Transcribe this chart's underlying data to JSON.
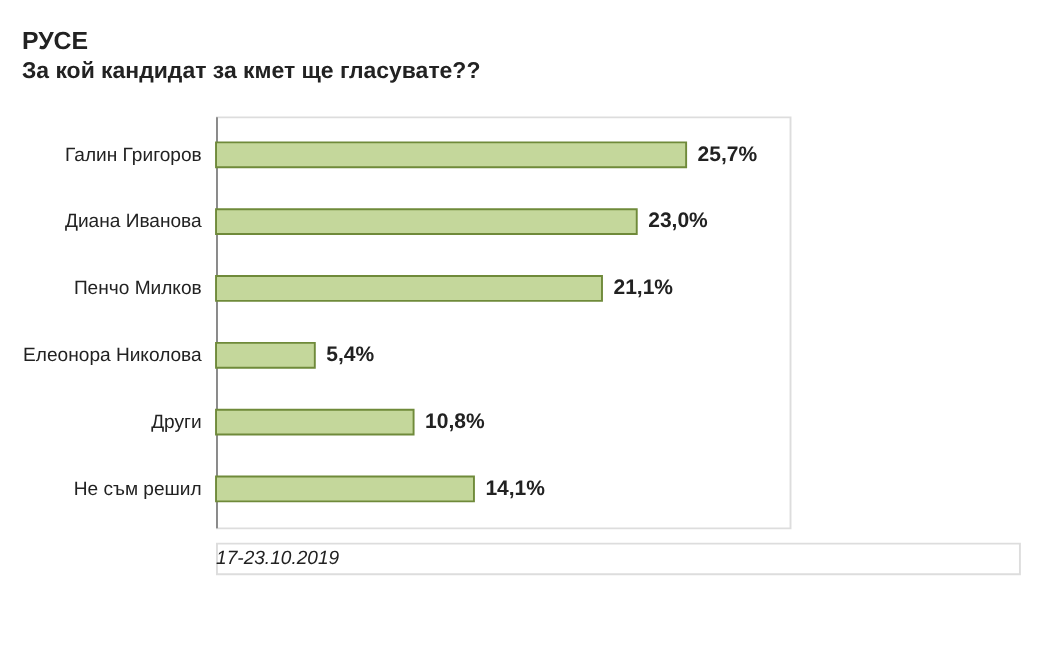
{
  "chart_data": {
    "type": "bar",
    "orientation": "horizontal",
    "title": "РУСЕ",
    "subtitle": "За кой кандидат за кмет ще гласувате??",
    "categories": [
      "Галин Григоров",
      "Диана Иванова",
      "Пенчо Милков",
      "Елеонора Николова",
      "Други",
      "Не съм решил"
    ],
    "values": [
      25.7,
      23.0,
      21.1,
      5.4,
      10.8,
      14.1
    ],
    "value_labels": [
      "25,7%",
      "23,0%",
      "21,1%",
      "5,4%",
      "10,8%",
      "14,1%"
    ],
    "color": "#c4d79b",
    "annotations": [
      "17-23.10.2019"
    ]
  }
}
